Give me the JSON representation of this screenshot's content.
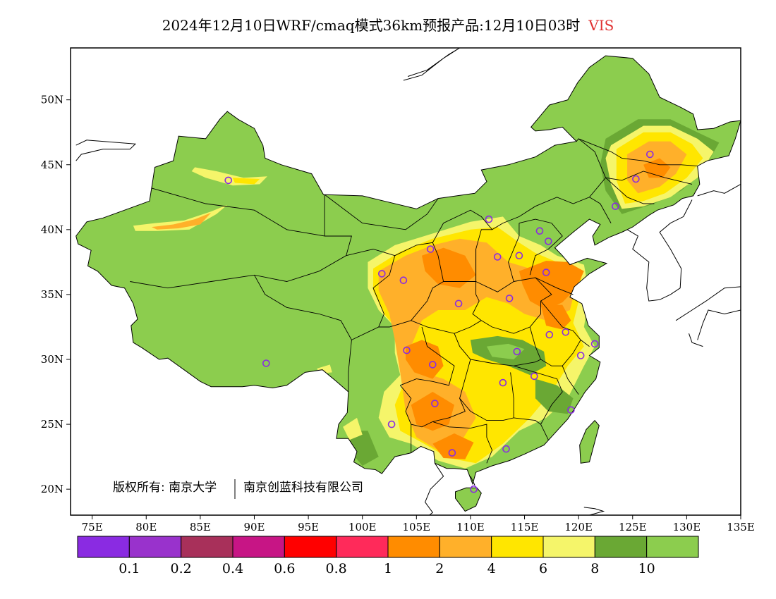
{
  "title": {
    "main": "2024年12月10日WRF/cmaq模式36km预报产品:12月10日03时",
    "variable": "VIS"
  },
  "copyright": {
    "part1": "版权所有: 南京大学",
    "part2": "南京创蓝科技有限公司"
  },
  "axes": {
    "x_ticks": [
      "75E",
      "80E",
      "85E",
      "90E",
      "95E",
      "100E",
      "105E",
      "110E",
      "115E",
      "120E",
      "125E",
      "130E",
      "135E"
    ],
    "y_ticks": [
      "50N",
      "45N",
      "40N",
      "35N",
      "30N",
      "25N",
      "20N"
    ],
    "lon_range": [
      73,
      135
    ],
    "lat_range": [
      18,
      54
    ]
  },
  "legend": {
    "colors": [
      "#8a2be2",
      "#9932cc",
      "#a8305a",
      "#c71585",
      "#ff0000",
      "#ff2a5a",
      "#ff8c00",
      "#ffb02a",
      "#ffe600",
      "#f5f56a",
      "#6aa834",
      "#8ccd4e"
    ],
    "labels": [
      "0.1",
      "0.2",
      "0.4",
      "0.6",
      "0.8",
      "1",
      "2",
      "4",
      "6",
      "8",
      "10"
    ]
  },
  "palette": {
    "green_light": "#8ccd4e",
    "green_dark": "#6aa834",
    "yellow_light": "#f5f56a",
    "yellow": "#ffe600",
    "orange_light": "#ffb02a",
    "orange": "#ff8c00",
    "station": "#8a2be2"
  },
  "stations": [
    {
      "lon": 87.6,
      "lat": 43.8
    },
    {
      "lon": 91.1,
      "lat": 29.7
    },
    {
      "lon": 101.8,
      "lat": 36.6
    },
    {
      "lon": 103.8,
      "lat": 36.1
    },
    {
      "lon": 106.3,
      "lat": 38.5
    },
    {
      "lon": 111.7,
      "lat": 40.8
    },
    {
      "lon": 112.5,
      "lat": 37.9
    },
    {
      "lon": 114.5,
      "lat": 38.0
    },
    {
      "lon": 116.4,
      "lat": 39.9
    },
    {
      "lon": 117.2,
      "lat": 39.1
    },
    {
      "lon": 117.0,
      "lat": 36.7
    },
    {
      "lon": 113.6,
      "lat": 34.7
    },
    {
      "lon": 108.9,
      "lat": 34.3
    },
    {
      "lon": 104.1,
      "lat": 30.7
    },
    {
      "lon": 106.5,
      "lat": 29.6
    },
    {
      "lon": 114.3,
      "lat": 30.6
    },
    {
      "lon": 117.3,
      "lat": 31.9
    },
    {
      "lon": 118.8,
      "lat": 32.1
    },
    {
      "lon": 121.5,
      "lat": 31.2
    },
    {
      "lon": 120.2,
      "lat": 30.3
    },
    {
      "lon": 115.9,
      "lat": 28.7
    },
    {
      "lon": 113.0,
      "lat": 28.2
    },
    {
      "lon": 106.7,
      "lat": 26.6
    },
    {
      "lon": 102.7,
      "lat": 25.0
    },
    {
      "lon": 108.3,
      "lat": 22.8
    },
    {
      "lon": 113.3,
      "lat": 23.1
    },
    {
      "lon": 119.3,
      "lat": 26.1
    },
    {
      "lon": 110.3,
      "lat": 20.0
    },
    {
      "lon": 123.4,
      "lat": 41.8
    },
    {
      "lon": 125.3,
      "lat": 43.9
    },
    {
      "lon": 126.6,
      "lat": 45.8
    }
  ]
}
